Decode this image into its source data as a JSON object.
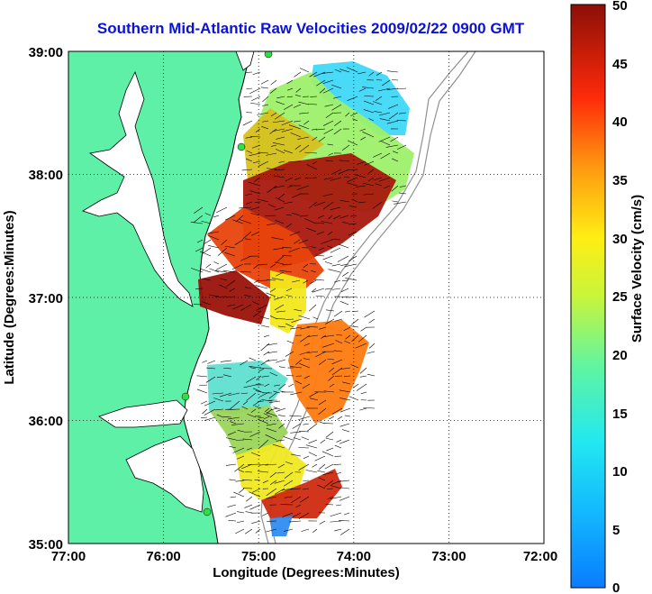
{
  "title": "Southern Mid-Atlantic Raw Velocities 2009/02/22 0900 GMT",
  "map": {
    "xlabel": "Longitude (Degrees:Minutes)",
    "ylabel": "Latitude (Degrees:Minutes)",
    "lon_ticks": [
      "77:00",
      "76:00",
      "75:00",
      "74:00",
      "73:00",
      "72:00"
    ],
    "lat_ticks": [
      "39:00",
      "38:00",
      "37:00",
      "36:00",
      "35:00"
    ],
    "lon_range": [
      -77,
      -72
    ],
    "lat_range": [
      35,
      39
    ],
    "grid": "dotted",
    "land_color": "#5ff0a8"
  },
  "colorbar": {
    "label": "Surface Velocity (cm/s)",
    "ticks": [
      "0",
      "5",
      "10",
      "15",
      "20",
      "25",
      "30",
      "35",
      "40",
      "45",
      "50"
    ],
    "range": [
      0,
      50
    ],
    "colormap": "jet"
  }
}
